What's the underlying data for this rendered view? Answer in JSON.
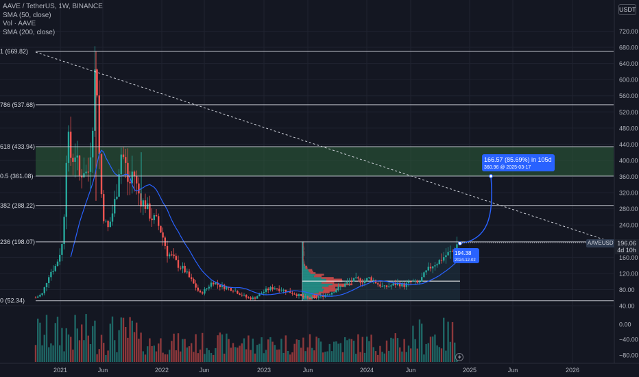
{
  "header": {
    "symbol_line": "AAVE / TetherUS, 1W, BINANCE",
    "indicators": [
      "SMA (50, close)",
      "Vol · AAVE",
      "SMA (200, close)"
    ],
    "currency_button": "USDT"
  },
  "colors": {
    "bg": "#141722",
    "up": "#26a69a",
    "down": "#ef5350",
    "sma": "#2962ff",
    "grid": "#1f2330",
    "fib_zone": "#2b5f3a",
    "projection": "#2962ff",
    "volume_profile_up": "#26a69a",
    "volume_profile_down": "#ef5350"
  },
  "price_axis": {
    "min": 40,
    "max": 720,
    "ticks": [
      "720.00",
      "680.00",
      "640.00",
      "600.00",
      "560.00",
      "520.00",
      "480.00",
      "440.00",
      "400.00",
      "360.00",
      "320.00",
      "280.00",
      "240.00",
      "200.00",
      "160.00",
      "120.00",
      "80.00",
      "40.00"
    ]
  },
  "volume_axis": {
    "ticks": [
      "0.00",
      "−40.00",
      "−80.00"
    ]
  },
  "time_axis": {
    "labels": [
      "2021",
      "Jun",
      "2022",
      "Jun",
      "2023",
      "Jun",
      "2024",
      "Jun",
      "2025",
      "Jun",
      "2026"
    ]
  },
  "fib_levels": [
    {
      "label": "1 (669.82)",
      "value": 669.82
    },
    {
      "label": "786 (537.68)",
      "value": 537.68
    },
    {
      "label": "618 (433.94)",
      "value": 433.94
    },
    {
      "label": "0.5 (361.08)",
      "value": 361.08
    },
    {
      "label": "382 (288.22)",
      "value": 288.22
    },
    {
      "label": "236 (198.07)",
      "value": 198.07
    },
    {
      "label": "0 (52.34)",
      "value": 52.34
    }
  ],
  "last_price": {
    "symbol": "AAVEUSDT",
    "price": "196.06",
    "countdown": "4d 10h",
    "value": 196.06
  },
  "low_marker": {
    "price": "194.38",
    "date": "2024-12-02",
    "value": 194.38
  },
  "projection": {
    "label": "166.57 (85.69%) in 105d",
    "sub": "360.96 @ 2025-03-17",
    "target_value": 360.96
  },
  "chart_data": {
    "type": "candlestick",
    "series": [
      {
        "name": "AAVE / TetherUS",
        "type": "candlestick"
      },
      {
        "name": "SMA (50, close)",
        "type": "line"
      }
    ],
    "x_labels": [
      "2021",
      "Jun",
      "2022",
      "Jun",
      "2023",
      "Jun",
      "2024",
      "Jun",
      "2025",
      "Jun",
      "2026"
    ],
    "y_range": [
      40,
      720
    ],
    "key_points": [
      {
        "date": "2020-12",
        "price": 60
      },
      {
        "date": "2021-02",
        "price": 470
      },
      {
        "date": "2021-05",
        "price": 669.82
      },
      {
        "date": "2021-06",
        "price": 200
      },
      {
        "date": "2021-08",
        "price": 420
      },
      {
        "date": "2021-11",
        "price": 300
      },
      {
        "date": "2022-06",
        "price": 60
      },
      {
        "date": "2022-08",
        "price": 110
      },
      {
        "date": "2023-06",
        "price": 52.34
      },
      {
        "date": "2023-11",
        "price": 100
      },
      {
        "date": "2024-08",
        "price": 90
      },
      {
        "date": "2024-12",
        "price": 196.06
      }
    ]
  }
}
